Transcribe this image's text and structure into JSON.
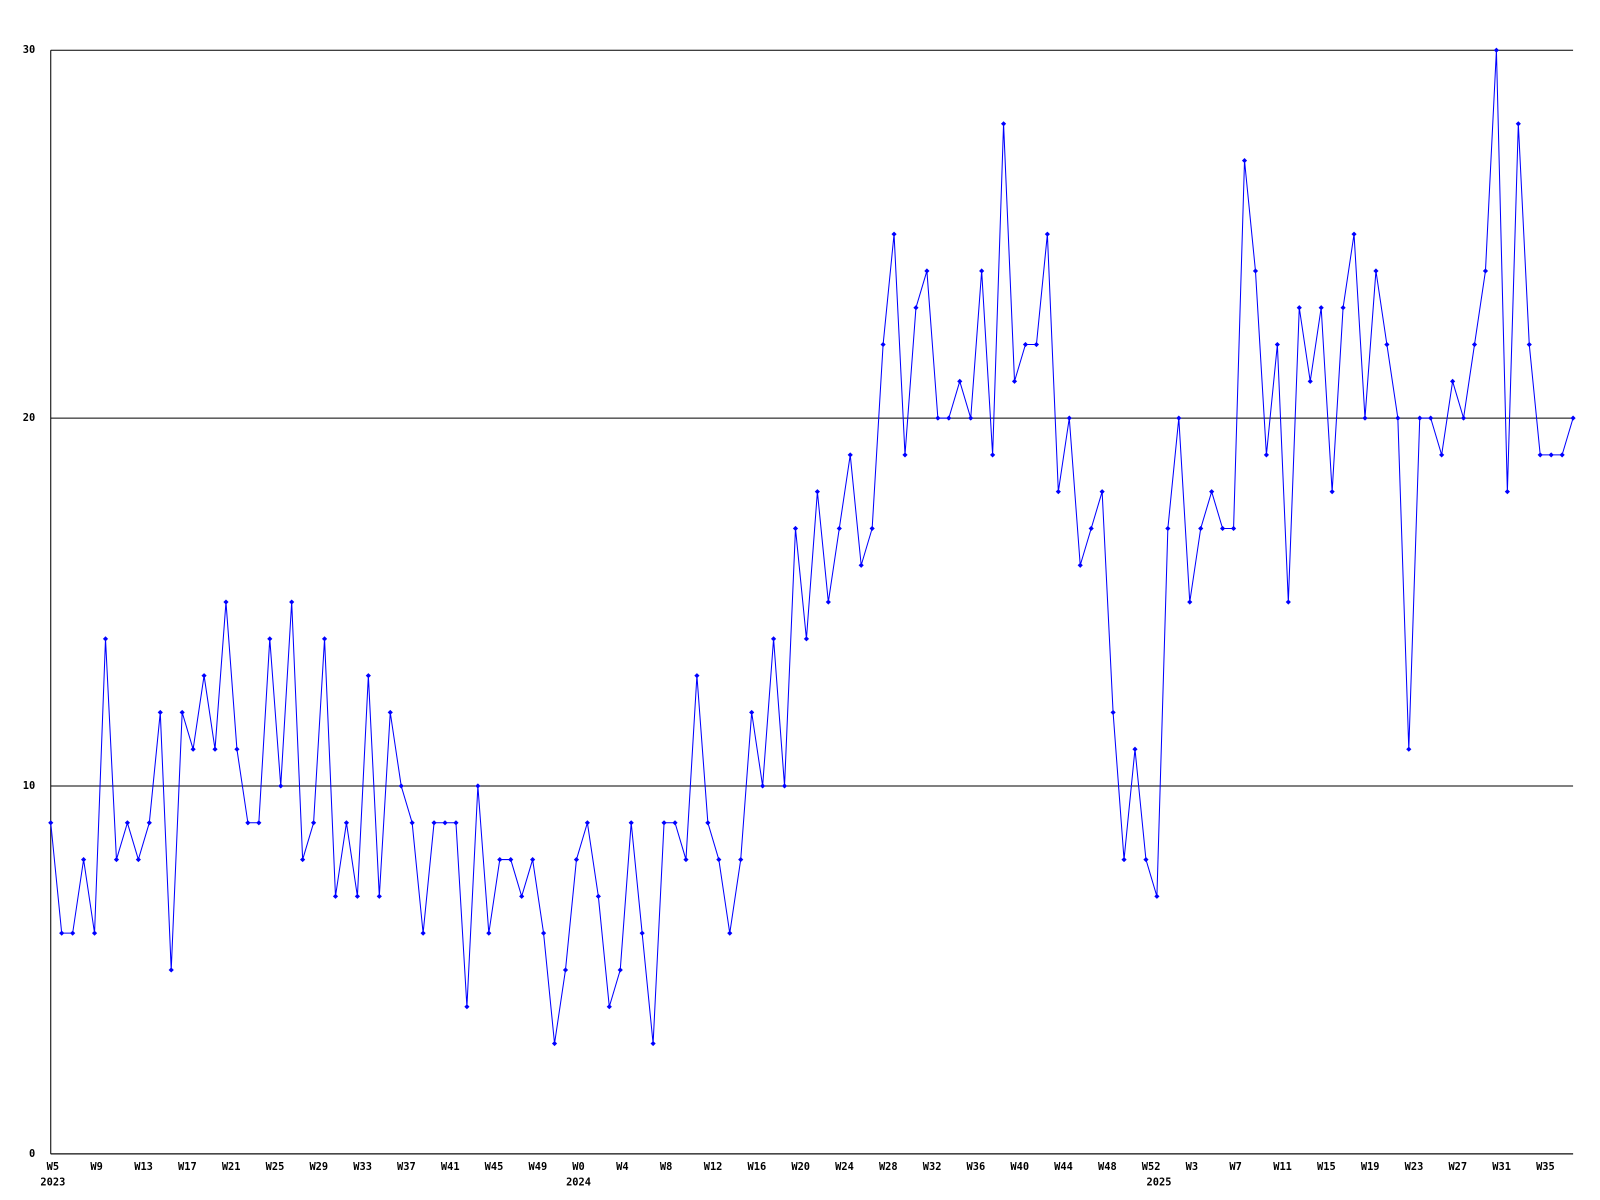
{
  "chart_data": {
    "type": "line",
    "color": "#0000ff",
    "grid": true,
    "categories": [
      "W5",
      null,
      null,
      null,
      "W9",
      null,
      null,
      null,
      "W13",
      null,
      null,
      null,
      "W17",
      null,
      null,
      null,
      "W21",
      null,
      null,
      null,
      "W25",
      null,
      null,
      null,
      "W29",
      null,
      null,
      null,
      "W33",
      null,
      null,
      null,
      "W37",
      null,
      null,
      null,
      "W41",
      null,
      null,
      null,
      "W45",
      null,
      null,
      null,
      "W49",
      null,
      null,
      null,
      "W0",
      null,
      null,
      null,
      "W4",
      null,
      null,
      null,
      "W8",
      null,
      null,
      null,
      "W12",
      null,
      null,
      null,
      "W16",
      null,
      null,
      null,
      "W20",
      null,
      null,
      null,
      "W24",
      null,
      null,
      null,
      "W28",
      null,
      null,
      null,
      "W32",
      null,
      null,
      null,
      "W36",
      null,
      null,
      null,
      "W40",
      null,
      null,
      null,
      "W44",
      null,
      null,
      null,
      "W48",
      null,
      null,
      null,
      "W52",
      null,
      null,
      null,
      "W3",
      null,
      null,
      null,
      "W7",
      null,
      null,
      null,
      "W11",
      null,
      null,
      null,
      "W15",
      null,
      null,
      null,
      "W19",
      null,
      null,
      null,
      "W23",
      null,
      null,
      null,
      "W27",
      null,
      null,
      null,
      "W31",
      null,
      null,
      null,
      "W35",
      null,
      null,
      null
    ],
    "category_years": [
      "2023",
      null,
      null,
      null,
      null,
      null,
      null,
      null,
      null,
      null,
      null,
      null,
      null,
      null,
      null,
      null,
      null,
      null,
      null,
      null,
      null,
      null,
      null,
      null,
      null,
      null,
      null,
      null,
      null,
      null,
      null,
      null,
      null,
      null,
      null,
      null,
      null,
      null,
      null,
      null,
      null,
      null,
      null,
      null,
      null,
      null,
      null,
      null,
      "2024",
      null,
      null,
      null,
      null,
      null,
      null,
      null,
      null,
      null,
      null,
      null,
      null,
      null,
      null,
      null,
      null,
      null,
      null,
      null,
      null,
      null,
      null,
      null,
      null,
      null,
      null,
      null,
      null,
      null,
      null,
      null,
      null,
      null,
      null,
      null,
      null,
      null,
      null,
      null,
      null,
      null,
      null,
      null,
      null,
      null,
      null,
      null,
      null,
      null,
      null,
      null,
      null,
      "2025",
      null,
      null,
      null,
      null,
      null,
      null,
      null,
      null,
      null,
      null,
      null,
      null,
      null,
      null,
      null,
      null,
      null,
      null,
      null,
      null,
      null,
      null,
      null,
      null,
      null,
      null,
      null,
      null,
      null,
      null,
      null,
      null,
      null,
      null,
      null,
      null,
      null,
      null
    ],
    "values": [
      9,
      6,
      6,
      8,
      6,
      14,
      8,
      9,
      8,
      9,
      12,
      5,
      12,
      11,
      13,
      11,
      15,
      11,
      9,
      9,
      14,
      10,
      15,
      8,
      9,
      14,
      7,
      9,
      7,
      13,
      7,
      12,
      10,
      9,
      6,
      9,
      9,
      9,
      4,
      10,
      6,
      8,
      8,
      7,
      8,
      6,
      3,
      5,
      8,
      9,
      7,
      4,
      5,
      9,
      6,
      3,
      9,
      9,
      8,
      13,
      9,
      8,
      6,
      8,
      12,
      10,
      14,
      10,
      17,
      14,
      18,
      15,
      17,
      19,
      16,
      17,
      22,
      25,
      19,
      23,
      24,
      20,
      20,
      21,
      20,
      24,
      19,
      28,
      21,
      22,
      22,
      25,
      18,
      20,
      16,
      17,
      18,
      12,
      8,
      11,
      8,
      7,
      17,
      20,
      15,
      17,
      18,
      17,
      17,
      27,
      24,
      19,
      22,
      15,
      23,
      21,
      23,
      18,
      23,
      25,
      20,
      24,
      22,
      20,
      11,
      20,
      20,
      19,
      21,
      20,
      22,
      24,
      30,
      18,
      28,
      22,
      19,
      19,
      19,
      20
    ],
    "ylim": [
      0,
      30
    ],
    "yticks": [
      0,
      10,
      20,
      30
    ]
  }
}
